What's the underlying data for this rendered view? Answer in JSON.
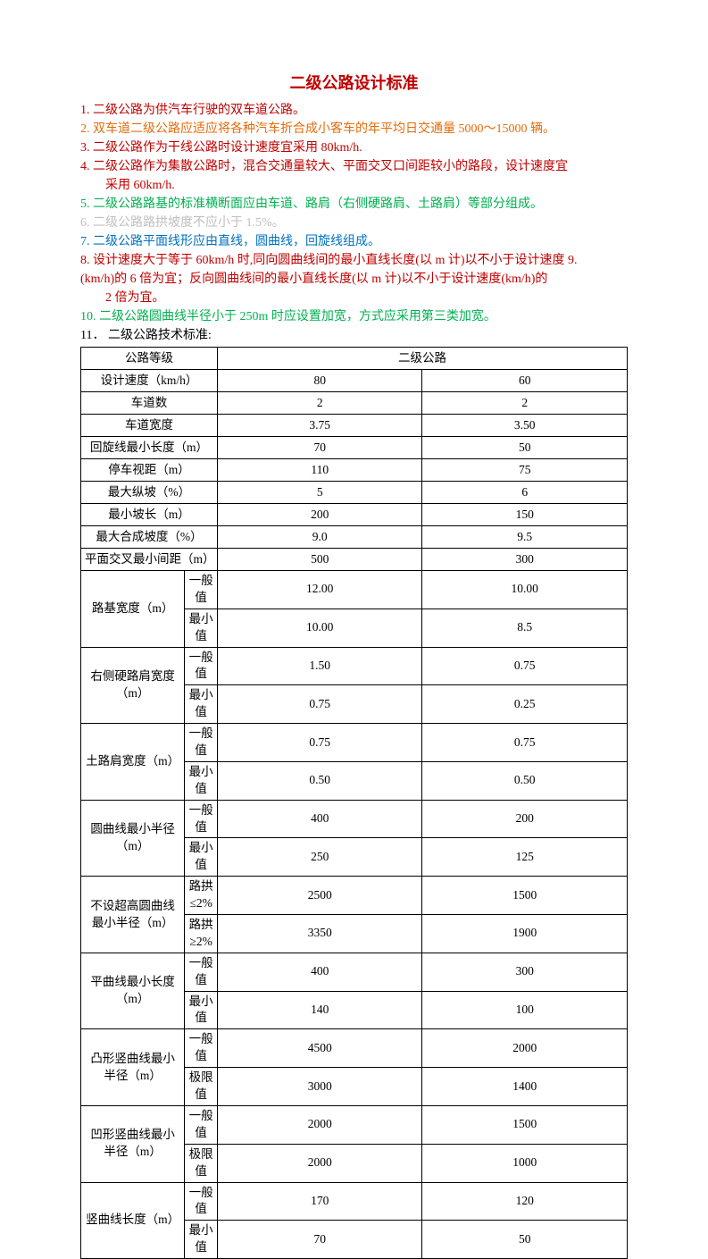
{
  "title": "二级公路设计标准",
  "title_color": "#c00000",
  "items": [
    {
      "text": "1.  二级公路为供汽车行驶的双车道公路。",
      "color": "#c00000"
    },
    {
      "text": "2.  双车道二级公路应适应将各种汽车折合成小客车的年平均日交通量 5000～15000 辆。",
      "color": "#e46c0a"
    },
    {
      "text": "3.  二级公路作为干线公路时设计速度宜采用 80km/h.",
      "color": "#c00000"
    },
    {
      "text": "4.  二级公路作为集散公路时，混合交通量较大、平面交叉口间距较小的路段，设计速度宜",
      "color": "#c00000"
    },
    {
      "text": "采用 60km/h.",
      "color": "#c00000",
      "indent": true
    },
    {
      "text": "5.  二级公路路基的标准横断面应由车道、路肩（右侧硬路肩、土路肩）等部分组成。",
      "color": "#00b050"
    },
    {
      "text": "6.  二级公路路拱坡度不应小于 1.5%。",
      "color": "#bfbfbf"
    },
    {
      "text": "7.  二级公路平面线形应由直线，圆曲线，回旋线组成。",
      "color": "#0070c0"
    },
    {
      "text": "8.  设计速度大于等于 60km/h 时,同向圆曲线间的最小直线长度(以 m 计)以不小于设计速度 9.",
      "color": "#c00000"
    },
    {
      "text": "(km/h)的 6 倍为宜；反向圆曲线间的最小直线长度(以 m 计)以不小于设计速度(km/h)的",
      "color": "#c00000"
    },
    {
      "text": "2 倍为宜。",
      "color": "#c00000",
      "indent": true
    },
    {
      "text": "10.  二级公路圆曲线半径小于 250m 时应设置加宽，方式应采用第三类加宽。",
      "color": "#00b050"
    },
    {
      "text": "11． 二级公路技术标准:",
      "color": "#000000"
    }
  ],
  "table": {
    "header_left": "公路等级",
    "header_right": "二级公路",
    "single_rows": [
      {
        "label": "设计速度（km/h）",
        "v1": "80",
        "v2": "60"
      },
      {
        "label": "车道数",
        "v1": "2",
        "v2": "2"
      },
      {
        "label": "车道宽度",
        "v1": "3.75",
        "v2": "3.50"
      },
      {
        "label": "回旋线最小长度（m）",
        "v1": "70",
        "v2": "50"
      },
      {
        "label": "停车视距（m）",
        "v1": "110",
        "v2": "75"
      },
      {
        "label": "最大纵坡（%）",
        "v1": "5",
        "v2": "6"
      },
      {
        "label": "最小坡长（m）",
        "v1": "200",
        "v2": "150"
      },
      {
        "label": "最大合成坡度（%）",
        "v1": "9.0",
        "v2": "9.5"
      },
      {
        "label": "平面交叉最小间距（m）",
        "v1": "500",
        "v2": "300"
      }
    ],
    "double_rows": [
      {
        "label": "路基宽度（m）",
        "sub1": "一般值",
        "a1": "12.00",
        "a2": "10.00",
        "sub2": "最小值",
        "b1": "10.00",
        "b2": "8.5"
      },
      {
        "label": "右侧硬路肩宽度（m）",
        "sub1": "一般值",
        "a1": "1.50",
        "a2": "0.75",
        "sub2": "最小值",
        "b1": "0.75",
        "b2": "0.25"
      },
      {
        "label": "土路肩宽度（m）",
        "sub1": "一般值",
        "a1": "0.75",
        "a2": "0.75",
        "sub2": "最小值",
        "b1": "0.50",
        "b2": "0.50"
      },
      {
        "label": "圆曲线最小半径（m）",
        "sub1": "一般值",
        "a1": "400",
        "a2": "200",
        "sub2": "最小值",
        "b1": "250",
        "b2": "125"
      },
      {
        "label": "不设超高圆曲线最小半径（m）",
        "sub1": "路拱≤2%",
        "a1": "2500",
        "a2": "1500",
        "sub2": "路拱≥2%",
        "b1": "3350",
        "b2": "1900"
      },
      {
        "label": "平曲线最小长度（m）",
        "sub1": "一般值",
        "a1": "400",
        "a2": "300",
        "sub2": "最小值",
        "b1": "140",
        "b2": "100"
      },
      {
        "label": "凸形竖曲线最小半径（m）",
        "sub1": "一般值",
        "a1": "4500",
        "a2": "2000",
        "sub2": "极限值",
        "b1": "3000",
        "b2": "1400"
      },
      {
        "label": "凹形竖曲线最小半径（m）",
        "sub1": "一般值",
        "a1": "2000",
        "a2": "1500",
        "sub2": "极限值",
        "b1": "2000",
        "b2": "1000"
      },
      {
        "label": "竖曲线长度（m）",
        "sub1": "一般值",
        "a1": "170",
        "a2": "120",
        "sub2": "最小值",
        "b1": "70",
        "b2": "50"
      }
    ]
  }
}
